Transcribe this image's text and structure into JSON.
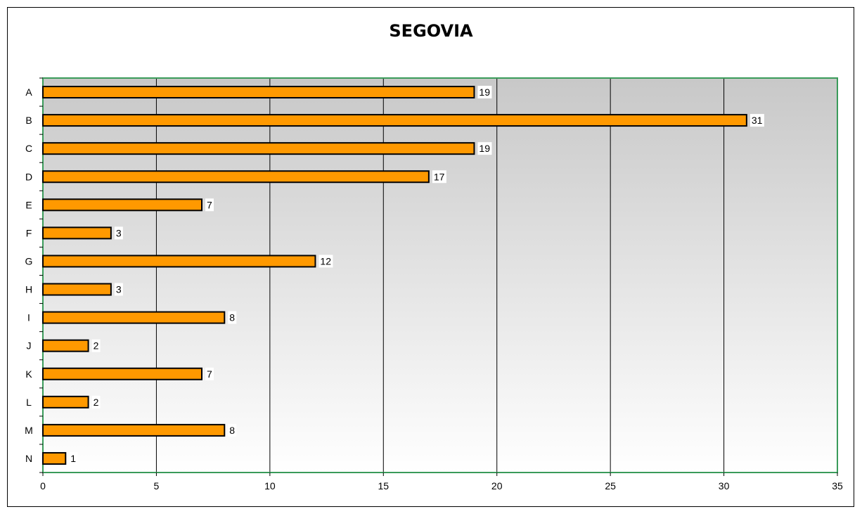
{
  "chart_data": {
    "type": "bar",
    "orientation": "horizontal",
    "title": "SEGOVIA",
    "xlabel": "",
    "ylabel": "",
    "categories": [
      "A",
      "B",
      "C",
      "D",
      "E",
      "F",
      "G",
      "H",
      "I",
      "J",
      "K",
      "L",
      "M",
      "N"
    ],
    "values": [
      19,
      31,
      19,
      17,
      7,
      3,
      12,
      3,
      8,
      2,
      7,
      2,
      8,
      1
    ],
    "xlim": [
      0,
      35
    ],
    "xticks": [
      0,
      5,
      10,
      15,
      20,
      25,
      30,
      35
    ],
    "grid": true,
    "data_labels": true,
    "legend": "none",
    "colors": {
      "bar_fill": "#FF9900",
      "bar_stroke": "#000000",
      "plot_border": "#3A9B5A",
      "plot_bg_top": "#C8C8C8",
      "plot_bg_bottom": "#FFFFFF",
      "gridline": "#000000"
    }
  }
}
